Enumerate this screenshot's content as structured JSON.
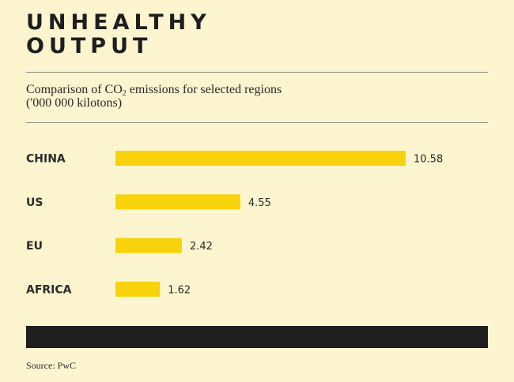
{
  "header": {
    "title_line1": "UNHEALTHY",
    "title_line2": "OUTPUT"
  },
  "chart_data": {
    "type": "bar",
    "orientation": "horizontal",
    "title": "UNHEALTHY OUTPUT",
    "subtitle_prefix": "Comparison of CO",
    "subtitle_sub": "2",
    "subtitle_suffix": " emissions for selected regions",
    "subtitle_line2": "('000 000 kilotons)",
    "categories": [
      "CHINA",
      "US",
      "EU",
      "AFRICA"
    ],
    "values": [
      10.58,
      4.55,
      2.42,
      1.62
    ],
    "value_labels": [
      "10.58",
      "4.55",
      "2.42",
      "1.62"
    ],
    "xlim": [
      0,
      10.58
    ],
    "xlabel": "",
    "ylabel": "",
    "grid": false,
    "bar_color": "#f8d20a"
  },
  "footer": {
    "source": "Source: PwC"
  },
  "colors": {
    "background": "#fdf5cf",
    "bar": "#f8d20a",
    "text": "#1e1e1e",
    "black_band": "#1e1e1e"
  }
}
